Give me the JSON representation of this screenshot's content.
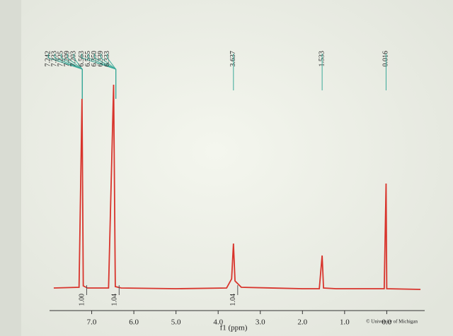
{
  "chart_data": {
    "type": "line",
    "x_label": "f1 (ppm)",
    "x": [
      7.9,
      7.3,
      7.23,
      7.2,
      7.1,
      6.6,
      6.48,
      6.44,
      6.3,
      5.0,
      3.8,
      3.68,
      3.637,
      3.6,
      3.45,
      2.0,
      1.6,
      1.533,
      1.5,
      1.2,
      0.06,
      0.016,
      0.0,
      -0.8
    ],
    "values": [
      2,
      3,
      270,
      5,
      2,
      2,
      290,
      4,
      2,
      1,
      2,
      15,
      65,
      12,
      3,
      1,
      1,
      48,
      2,
      1,
      1,
      150,
      1,
      0
    ],
    "color": "#d8342c",
    "xlim": [
      8.0,
      -0.9
    ],
    "ylim": [
      0,
      300
    ],
    "xticks": [
      {
        "value": 7,
        "label": "7.0"
      },
      {
        "value": 6,
        "label": "6.0"
      },
      {
        "value": 5,
        "label": "5.0"
      },
      {
        "value": 4,
        "label": "4.0"
      },
      {
        "value": 3,
        "label": "3.0"
      },
      {
        "value": 2,
        "label": "2.0"
      },
      {
        "value": 1,
        "label": "1.0"
      },
      {
        "value": 0,
        "label": "0.0"
      }
    ],
    "peak_groups": [
      [
        "7.242",
        "7.233",
        "7.225",
        "7.209",
        "7.203"
      ],
      [
        "6.563",
        "6.555",
        "6.350",
        "6.339",
        "6.333"
      ],
      [
        "3.637"
      ],
      [
        "1.533"
      ],
      [
        "0.016"
      ]
    ],
    "integrals": [
      {
        "x": 7.22,
        "label": "1.00"
      },
      {
        "x": 6.45,
        "label": "1.04"
      },
      {
        "x": 3.637,
        "label": "1.04"
      }
    ],
    "credit": "© University of Michigan"
  }
}
